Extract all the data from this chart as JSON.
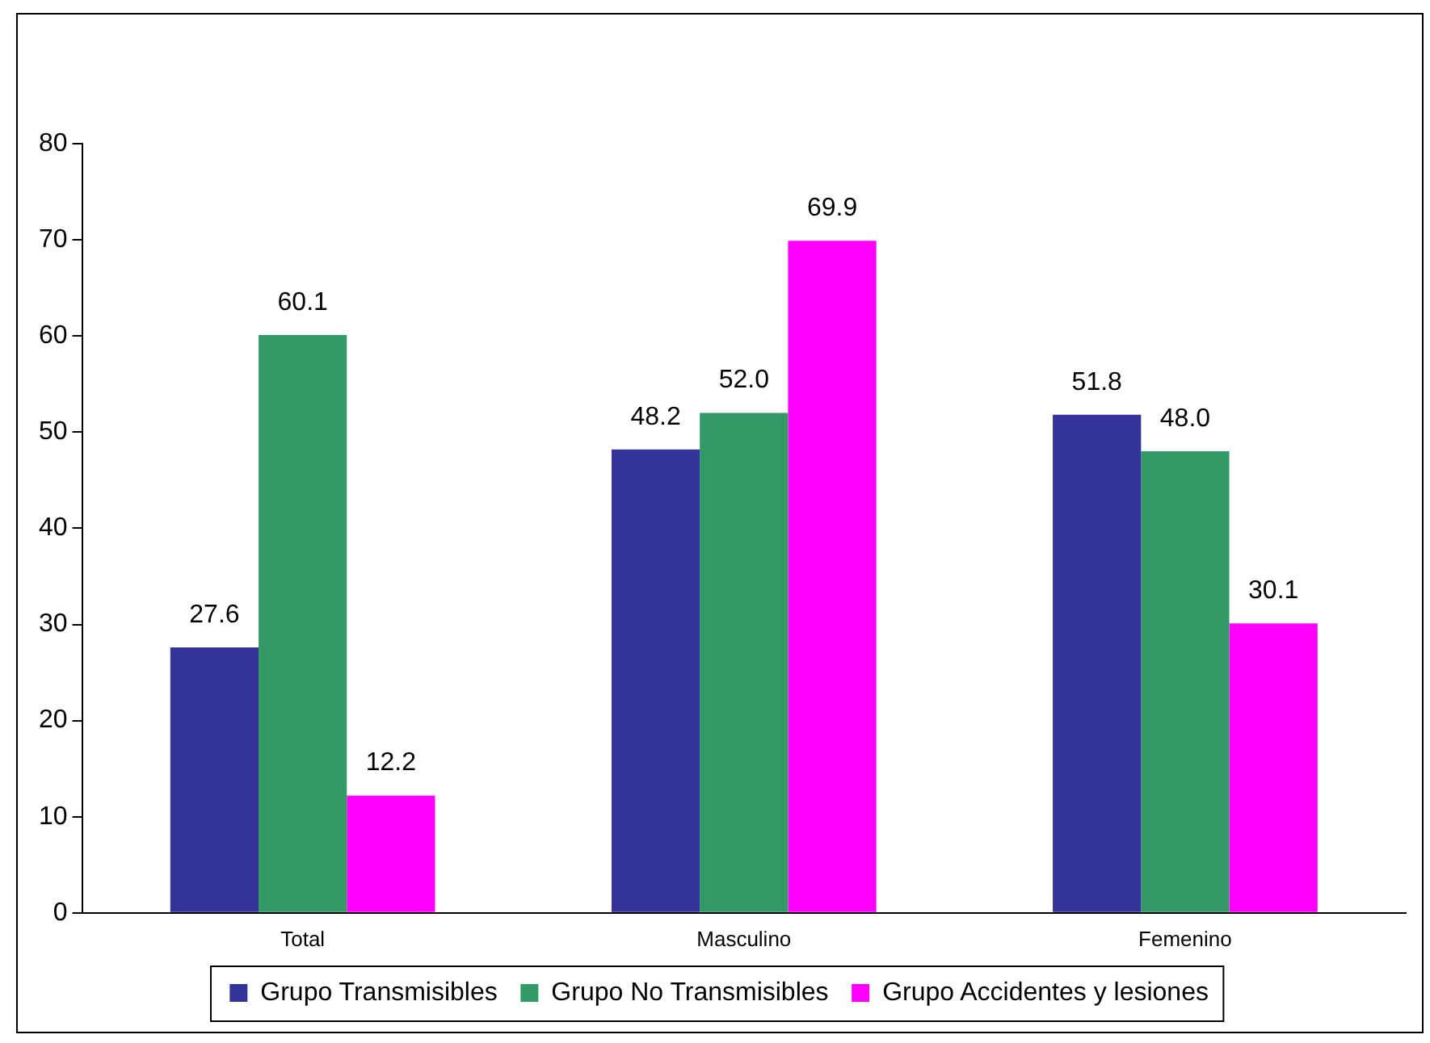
{
  "chart_data": {
    "type": "bar",
    "categories": [
      "Total",
      "Masculino",
      "Femenino"
    ],
    "series": [
      {
        "name": "Grupo Transmisibles",
        "color": "#333399",
        "values": [
          27.6,
          48.2,
          51.8
        ],
        "value_labels": [
          "27.6",
          "48.2",
          "51.8"
        ]
      },
      {
        "name": "Grupo No Transmisibles",
        "color": "#339966",
        "values": [
          60.1,
          52.0,
          48.0
        ],
        "value_labels": [
          "60.1",
          "52.0",
          "48.0"
        ]
      },
      {
        "name": "Grupo Accidentes y lesiones",
        "color": "#ff00ff",
        "values": [
          12.2,
          69.9,
          30.1
        ],
        "value_labels": [
          "12.2",
          "69.9",
          "30.1"
        ]
      }
    ],
    "ylim": [
      0,
      80
    ],
    "yticks": [
      0,
      10,
      20,
      30,
      40,
      50,
      60,
      70,
      80
    ],
    "grid": false,
    "legend": "bottom"
  }
}
